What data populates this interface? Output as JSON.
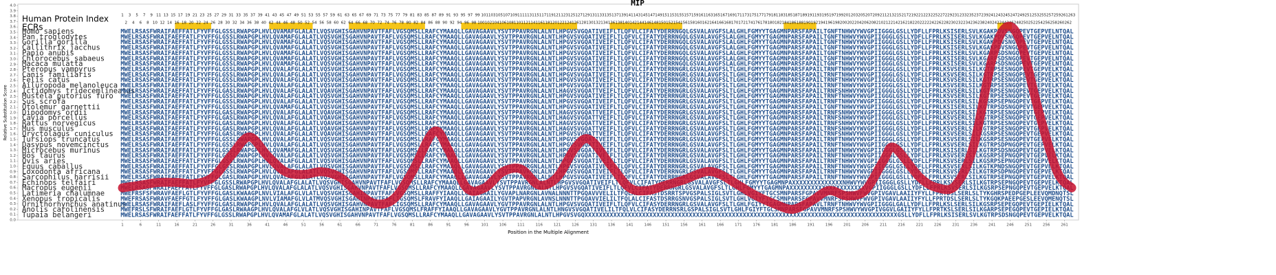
{
  "chart_data": {
    "type": "line",
    "title": "MIP",
    "xlabel": "Position in the Multiple Alignment",
    "ylabel": "Relative Substitution Score",
    "color": "#c8102e",
    "x": [
      1,
      6,
      11,
      16,
      21,
      26,
      31,
      36,
      41,
      46,
      51,
      56,
      61,
      66,
      71,
      76,
      81,
      87,
      91,
      96,
      101,
      106,
      111,
      116,
      121,
      126,
      130,
      136,
      141,
      146,
      151,
      156,
      162,
      166,
      171,
      176,
      181,
      186,
      191,
      196,
      201,
      206,
      211,
      214,
      221,
      226,
      231,
      236,
      241,
      245,
      249,
      254,
      259,
      263
    ],
    "values": [
      0.6,
      0.65,
      0.7,
      0.7,
      0.68,
      0.8,
      1.2,
      1.55,
      1.2,
      0.9,
      0.85,
      0.9,
      0.8,
      0.5,
      0.3,
      0.4,
      0.9,
      1.65,
      1.3,
      0.6,
      0.6,
      0.9,
      0.95,
      0.65,
      0.8,
      1.35,
      1.5,
      1.0,
      0.6,
      0.55,
      0.65,
      0.75,
      0.9,
      0.85,
      0.65,
      0.45,
      0.3,
      0.2,
      0.35,
      0.55,
      0.45,
      0.55,
      1.1,
      1.35,
      0.8,
      0.6,
      0.65,
      1.4,
      3.0,
      3.6,
      3.3,
      2.0,
      0.9,
      0.6
    ],
    "xlim": [
      1,
      263
    ],
    "ylim": [
      0,
      4
    ],
    "xticks": [
      1,
      6,
      11,
      16,
      21,
      26,
      31,
      36,
      41,
      46,
      51,
      56,
      61,
      66,
      71,
      76,
      81,
      86,
      91,
      96,
      101,
      106,
      111,
      116,
      121,
      126,
      131,
      136,
      141,
      146,
      151,
      156,
      161,
      166,
      171,
      176,
      181,
      186,
      191,
      196,
      201,
      206,
      211,
      216,
      221,
      226,
      231,
      236,
      241,
      246,
      251,
      256,
      261
    ],
    "yticks": [
      {
        "value": 0,
        "label": "0.0"
      },
      0.1,
      0.2,
      0.3,
      0.4,
      0.5,
      0.6,
      0.7,
      0.8,
      0.9,
      {
        "value": 1,
        "label": "1.0"
      },
      1.1,
      1.2,
      1.3,
      1.4,
      1.5,
      1.6,
      1.7,
      1.8,
      1.9,
      {
        "value": 2,
        "label": "2.0"
      },
      2.1,
      2.2,
      2.3,
      2.4,
      2.5,
      2.6,
      2.7,
      2.8,
      2.9,
      {
        "value": 3,
        "label": "3.0"
      },
      3.1,
      3.2,
      3.3,
      3.4,
      3.5,
      3.6,
      3.7,
      3.8,
      3.9,
      {
        "value": 4,
        "label": "4.0"
      }
    ]
  },
  "alignment": {
    "index_title": "Human Protein Index",
    "ecr_title": "ECRs",
    "index_row": [
      1,
      3,
      5,
      7,
      9,
      11,
      13,
      15,
      17,
      19,
      21,
      23,
      25,
      27,
      29,
      31,
      33,
      35,
      37,
      39,
      41,
      43,
      45,
      47,
      49,
      51,
      53,
      55,
      57,
      59,
      61,
      63,
      65,
      67,
      69,
      71,
      73,
      75,
      77,
      79,
      81,
      83,
      85,
      87,
      89,
      91,
      93,
      95,
      97,
      99,
      101,
      103,
      105,
      107,
      109,
      111,
      113,
      115,
      117,
      119,
      121,
      123,
      125,
      127,
      129,
      131,
      133,
      135,
      137,
      139,
      141,
      143,
      145,
      147,
      149,
      151,
      153,
      155,
      157,
      159,
      161,
      163,
      165,
      167,
      169,
      171,
      173,
      175,
      177,
      179,
      181,
      183,
      185,
      187,
      189,
      191,
      193,
      195,
      197,
      199,
      201,
      203,
      205,
      207,
      209,
      211,
      213,
      215,
      217,
      219,
      221,
      223,
      225,
      227,
      229,
      231,
      233,
      235,
      237,
      239,
      241,
      243,
      245,
      247,
      249,
      251,
      253,
      255,
      257,
      259,
      261,
      263
    ],
    "position_row": [
      2,
      4,
      6,
      8,
      10,
      12,
      14,
      16,
      18,
      20,
      22,
      24,
      26,
      28,
      30,
      32,
      34,
      36,
      38,
      40,
      42,
      44,
      46,
      48,
      50,
      52,
      54,
      56,
      58,
      60,
      62,
      64,
      66,
      68,
      70,
      72,
      74,
      76,
      78,
      80,
      82,
      84,
      86,
      88,
      90,
      92,
      94,
      96,
      98,
      100,
      102,
      104,
      106,
      108,
      110,
      112,
      114,
      116,
      118,
      120,
      122,
      124,
      126,
      128,
      130,
      132,
      134,
      136,
      138,
      140,
      142,
      144,
      146,
      148,
      150,
      152,
      154,
      156,
      158,
      160,
      162,
      164,
      166,
      168,
      170,
      172,
      174,
      176,
      178,
      180,
      182,
      184,
      186,
      188,
      190,
      192,
      194,
      196,
      198,
      200,
      202,
      204,
      206,
      208,
      210,
      212,
      214,
      216,
      218,
      220,
      222,
      224,
      226,
      228,
      230,
      232,
      234,
      236,
      238,
      240,
      242,
      244,
      246,
      248,
      250,
      252,
      254,
      256,
      258,
      260,
      262
    ],
    "ecrs": [
      [
        16,
        25
      ],
      [
        42,
        53
      ],
      [
        64,
        84
      ],
      [
        95,
        126
      ],
      [
        136,
        155
      ],
      [
        184,
        192
      ],
      [
        243,
        246
      ]
    ],
    "rows": [
      {
        "species": "Homo sapiens",
        "sequence": "MWELRSASFWRAIFAEFFATLFYVFFGLGSSLRWAPGPLHVLQVAMAFGLALATLVQSVGHISGAHVNPAVTFAFLVGSQMSLLRAFCYMAAQLLGAVAGAAVLYSVTPPAVRGNLALNTLHPGVSVGQATIVEIFLTLQFVLCIFATYDERRNGQLGSVALAVGFSLALGHLFGMYYTGAGMNPARSFAPAILTGNFTNHWVYWVGPIIGGGLGSLLYDFLLFPRLKSISERLSVLKGAKPDVSNGQPEVTGEPVELNTQAL"
      },
      {
        "species": "Pan troglodytes",
        "sequence": "MWELRSASFWRAIFAEFFATLFYVFFGLGSSLRWAPGPLHVLQVAMAFGLALATLVQSVGHISGAHVNPAVTFAFLVGSQMSLLRAFCYMAAQLLGAVAGAAVLYSVTPPAVRGNLALNTLHPGVSVGQATIVEIFLTLQFVLCIFATYDERRNGQLGSVALAVGFSLALGHLFGMYYTGAGMNPARSFAPAILTGNFTNHWVYWVGPIIGGGLGSLLYDFLLFPRLKSISERLSVLKGAKPDVSNGQPEVTGEPVELNTQAL"
      },
      {
        "species": "Gorilla gorilla",
        "sequence": "MWELRSASFWRAIFAEFFATLFYVFFGLGSSLRWAPGPLHVLQVAMAFGLALATLVQSVGHISGAHVNPAVTFAFLVGSQMSLLRAFCYMAAQLLGAVAGAAVLYSVTPPAVRGNLALNTLHPGVSVGQATIVEIFLTLQFVLCIFATYDERRNGQLGSVALAVGFSLALGHLFGMYYTGAGMNPARSFAPAILTGNFTNHWVYWVGPIIGGGLGSLLYDFLLFPRLKSISERLSVLKGAKPDVSNGQPEVTGEPVELNTQAL"
      },
      {
        "species": "Callithrix jacchus",
        "sequence": "MWELRSASFWRAIFAEFFATLFYVFFGLGSSLRWAPGPLHVLQVAMAFGLALATLVQSVGHISGAHVNPAVTFAFLVGSQMSLLRAFCYMAAQLLGAVAGAAVLYSVTPPAVRGNLALNTLHPGVSVGQATIVEIFLTLQFVLCIFATYDERRNGQLGSVALAVGFSLALGHLFGMYYTGAGMNPARSFAPAILTGNFTNHWVYWVGPIIGGGLGSLLYDFLLFPRLKSISERLSVLKGAKPDVSNGQPEVTGEPVELNTQAL"
      },
      {
        "species": "Papio anubis",
        "sequence": "MWELRSASFWRAIFAEFFATLFYVFFGLGSSLRWAPGPLHVLQVAMAFGLALATLVQSVGHISGAHVNPAVTFAFLVGSQMSLLRAFCYMAAQLLGAVAGAAVLYSVTPPAVRGNLALNTLHPGVSVGQATIVEIFLTLQFVLCIFATYDERRNGQLGSVALAVGFSLALGHLFGMYYTGAGMNPARSFAPAILTGNFTNHWVYWVGPIIGGGLGSLLYDFLLFPRLKSISERLSVLKGARPSDSNGQPEVTGEPVELNTQAL"
      },
      {
        "species": "Chlorocebus sabaeus",
        "sequence": "MWELRSASFWRAIFAEFFATLFYVFFGLGSSLRWAPGPLHVLQVAMAFGLALATLVQSVGHISGAHVNPAVTFAFLVGSQMSLLRAFCYMAAQLLGAVAGAAVLYSVTPPAVRGNLALNTLHPGVSVGQATIVEIFLTLQFVLCIFATYDERRNGQLGSVALAVGFSLALGHLFGMYYTGAGMNPARSFAPAILTGNFTNHWVYWVGPIIGGGLGSLLYDFLLFPRLKSISERLSVLKGARPSDSNGQPEVTGEPVELNTQAL"
      },
      {
        "species": "Macaca mulatta",
        "sequence": "MWELRSASFWRAIFAEFFATLFYVFFGLGSSLRWAPGPLHVLQVAMAFGLALATLVQSVGHISGAHVNPAVTFAFLVGSQMSLLRAFCYMAAQLLGAVAGAAVLYSVTPPAVRGNLALNTLHPGVSVGQATIVEIFLTLQFVLCIFATYDERRNGQLGSVALAVGFSLALGHLFGMYYTGAGMNPARSFAPAILTGNFTNHWVYWVGPIIGGGLGSLLYDFLLFPRLKSISERLSVLKGARPSDSNGQPEVTGEPVELNTQAL"
      },
      {
        "species": "Pteropus vampyrus",
        "sequence": "MWELRSASFWRAIFAEFFATLFYVFFGLGSSLRWAPGPLHVLQVALAFGLALATLVQSVGHISGAHVNPAVTFAFLVGSQMSLLRAFCYMAAQLLGAVAGAAVLYSVTPPAVRGNLALNTLHPGVSVGQATIVEIFLTLQFVLCIFATYDERRNGRLGSVALAVGFSLTLGHLFGMYYTGAGMNPARSFAPAILTRNFTNHWVYWVGPIIGGGLGSLLYDFLLFPRLKSVSERLSILKGTRPSESNGQPEVTGEPVELKTQAL"
      },
      {
        "species": "Canis familiaris",
        "sequence": "MWELRSASFWRAIFAEFFATLFYVFFGLGSSLRWAPGPLHVLQVALAFGLALATLVQSVGHISGAHVNPAVTFAFLVGSQMSLLRAFCYMAAQLLGAVAGAAVLYSVTPPAVRGNLALNTLHPGVSVGQATIVEIFLTLQFVLCIFATYDERRNGRLGSVALAVGFSLTLGHLFGMYYTGAGMNPARSFAPAILTRNFTNHWVYWVGPIIGGGLGSLLYDFLLFPRLKSVSERLSILKGTRPSESNGQPEVTGEPVELKTQAL"
      },
      {
        "species": "Felis catus",
        "sequence": "MWELRSASFWRAIFAEFFATLFYVFFGLGSSLRWAPGPLHVLQVALAFGLALATLVQSVGHISGAHVNPAVTFAFLVGSQMSLLRAFCYMAAQLLGAVAGAAVLYSVTPPAVRGNLALNTLHPGVSVGQATIVEIFLTLQFVLCIFATYDERRNGRLGSVALAVGFSLTLGHLFGMYYTGAGMNPARSFAPAILTRNFTNHWVYWVGPIIGGGLGSLLYDFLLFPRLKSVSERLSILKGTRPSESNGQPEVTGEPVELKTQAL"
      },
      {
        "species": "Ailuropoda melanoleuca",
        "sequence": "MWELRSASFWRAIFAEFFATLFYVFFGLGSSLRWAPGPLHVLQVALAFGLALATLVQSVGHISGAHVNPAVTFAFLVGSQMSLLRAFCYMAAQLLGAVAGAAVLYSVTPPAVRGNLALNTLHPGVSVGQATIVEIFLTLQFVLCIFATYDERRNGRLGSVALAVGFSLTLGHLFGMYYTGAGMNPARSFAPAILTRNFTNHWVYWVGPIIGGGLGSLLYDFLLFPRLKSVSERLSILKGTRPSESNGQPEVTGEPVELKTQAL"
      },
      {
        "species": "Ictidomys tridecemlineatus",
        "sequence": "MWELRSASFWRAIFAEFFATLFYVFFGLGASLRWAPGPLHVLQVALAFGLALATLVQAVGHISGAHVNPAVTFAFLVGSQMSLLRAFCYMAAQLLGAVAGAAVLYSVTPPAVRGNLALNTLHAGVSVGQATTVEIFLTLQFVLCIFATYDERRNGRLGSVALAVGFSLTLGHLFGMYYTGAGMNPARSFAPAILTRNFSNHWVYWVGPIIGGGLGSLLYDFLLFPRLKSVSERLSILKGTRPSESNGQPEVTGEPVELKTQAL"
      },
      {
        "species": "Mustela putorius furo",
        "sequence": "MWELRSASFWRAIFAEFFATLFYVFFGLGSSLRWAPGPLHVLQVALAFGLALATLVQSVGHISGAHVNPAVTFAFLVGSQMSLLRAFCYMAAQLLGAVAGAAVLYSVTPPAVRGNLALNTLHPGVSVGQATIVEIFLTLQFVLCIFATYDERRNGRLGSVALAVGFSLTLGHLFGMYYTGAGMNPARSFAPAILTRNFTNHWVYWVGPIIGGGLGSLLYDFLLFPRLKSVSERLSILKGTRPSESNGQPEVTGEPVELKTQAL"
      },
      {
        "species": "Sus scrofa",
        "sequence": "MWELRSASFWRAIFAEFFATLFYVFFGLGSSLRWAPGPLHVLQVALAFGLALATLVQSVGHISGAHVNPAVTFAFLVGSQMSLLRAFCYMAAQLLGAVAGAAVLYSVTPPAVRGNLALNTLHPGVSVGQATIVEIFLTLQFVLCIFATYDERRNGRLGSVALAVGFSLTLGHLFGMYYTGAGMNPARSFAPAILTRNFTNHWVYWVGPIIGGGLGSLLYDFLLFPRLKSVSERLSILKGSRPSEPNGQPEVTGEPVELKTQAL"
      },
      {
        "species": "Otolemur garnettii",
        "sequence": "MWELRSASFWRAIFAEFFATLFYVFFGLGSSLRWAPGPLHVLQVAMAFGLALATLVQSVGHISGAHVNPAVTFAFLVGSQMSLLRAFCYMAAQLLGAVAGAAVLYSVTPPAVRGNLALNTLHPGVSVGQATIVEIFLTLQFVLCIFATYDERRNGRLGSVALAVGFSLTLGHLFGMYYTGAGMNPARSFAPAILTGNFTNHWVYWVGPIIGGGLGSLLYDFLLFPRLKSISERLSILKGTRPSDSNGQPEVTGEPVELKTQAL"
      },
      {
        "species": "Dipodomys ordii",
        "sequence": "MWELRSASFWRAIFAEFFATLFYVFFGLGASLRWAPGPLHVLQVALAFGLALATLVQAVGHISGAHVNPAVTFAFLVGSQMSLLRAFCYMAAQLLGAVAGAAVLYSVTPPAVRGNLALNTLHAGVSVGQATTVEIFLTLQFVLCIFATYDERRNGRLGSVALAVGFSLTLGHLFGMYYTGAGMNPARSFAPAILTRNFSNHWVYWVGPIIGGGLGSLLYDFLLFPRLKSVSERLSILKGTRPSESNGQPEVTGEPVELKTQAL"
      },
      {
        "species": "Cavia porcellus",
        "sequence": "MWELRSASFWRAIFAEFFATLFYVFFGLGASLRWAPGPLHVLQVALAFGLALATLVQAVGHISGAHVNPAVTFAFLVGSQMSLLRAFCYMAAQLLGAVAGAAVLYSVTPPAVRGNLALNTLHAGVSVGQATTVEIFLTLQFVLCIFATYDERRNGRLGSVALAVGFSLTLGHLFGMYYTGAGMNPARSFAPAILTRNFSNHWVYWVGPIIGGGLGSLLYDFLLFPRLKSVSERLSILKGTRPSESNGQPEVTGEPVELKTQAL"
      },
      {
        "species": "Rattus norvegicus",
        "sequence": "MWELRSASFWRAIFAEFFATLFYVFFGLGASLRWAPGPLHVLQVALAFGLALATLVQAVGHISGAHVNPAVTFAFLVGSQMSLLRAFCYMAAQLLGAVAGAAVLYSVTPPAVRGNLALNTLHAGVSVGQATTVEIFLTLQFVLCIFATYDERRNGRLGSVALAVGFSLTLGHLFGMYYTGAGMNPARSFAPAILTRNFSNHWVYWVGPIIGGGLGSLLYDFLLFPRLKSVSERLSILKGTRPSESNGQPEVTGEPVELKTQAL"
      },
      {
        "species": "Mus musculus",
        "sequence": "MWELRSASFWRAIFAEFFATLFYVFFGLGASLRWAPGPLHVLQVALAFGLALATLVQAVGHISGAHVNPAVTFAFLVGSQMSLLRAFCYMAAQLLGAVAGAAVLYSVTPPAVRGNLALNTLHAGVSVGQATTVEIFLTLQFVLCIFATYDERRNGRLGSVALAVGFSLTLGHLFGMYYTGAGMNPARSFAPAILTRNFSNHWVYWVGPIIGGGLGSLLYDFLLFPRLKSVSERLSILKGTRPSESNGQPEVTGEPVELKTQAL"
      },
      {
        "species": "Oryctolagus cuniculus",
        "sequence": "MWELRSASFWRAIFAEFFATLFYVFFGLGASLRWAPGPLHVLQVALAFGLALATLVQAVGHISGAHVNPAVTFAFLVGSQMSLLRAFCYMAAQLLGAVAGAAVLYSVTPPAVRGNLALNTLHPGVSVGQATTVEIFLTLQFVLCIFATYDERRNGRLGSVALAVGFSLTLGHLFGMYYTGAGMNPARSFAPAILTRNFSNHWVYWVGPIIGGGLGSLLYDFLLFPRLKSVSERLSILKGSRPSESNGQPEVTGEPVELKTQAL"
      },
      {
        "species": "Tursiops truncatus",
        "sequence": "MWELRSASFWRAIFAEFFATLFYVFFGLGSSLRWAPGPLHVLQVALAFGLALATLVQSVGHISGAHVNPAVTFAFLVGSQMSLLRAFCYMAAQLLGAVAGAAVLYSVTPPAVRGNLALNTLHPGVSVGQATIVEIFLTLQFVLCIFATYDERRNGRLGSVALAVGFSLTLGHLFGMYYTGAGMNPARSFAPAILTRNFTNHWVYWVGPIIGGGLGSLLYDFLLFPRLKSVSERLSILKGSRPSESNGQPEVTGEPVELKTQAL"
      },
      {
        "species": "Dasypus novemcinctus",
        "sequence": "MWELRSASFWRAIFAEFFATLFYVFFGLGSSLRWAPGPLHVLQVALAFGLALATLVQSVGHISGAHVNPAVTFAFLVGSQMSLLRAFCYMAAQLLGAVAGAAVLYSVTPPAVRGNLALNTLHPGVSVGQATIVEIFLTLQFVLCIFATYDERRNGRLGSVALAVGFSLTLGHLFGMYYTGAGMNPARSFAPAILTRNFTNHWVYWVGPIIGGGLGSLLYDFLLFPRLKSVSERLSILKGTRPSDPNGQPEVTGEPVELKTQAL"
      },
      {
        "species": "Microcebus murinus",
        "sequence": "MWELRSASFWRAIFAEFFATLFYVFFGLGSSLRWAPGPLHVLQVAMAFGLALATLVQSVGHISGAHVNPAVTFAFLVGSQMSLLRAFCYMAAQLLGAVAGAAVLYSVTPPAVRGNLALNTLHPGVSVGQATIVEIFLTLQFVLCIFATYDERRNGRLGSVALAVGFSLTLGHLFGMYYTGAGMNPARSFAPAILTGNFTNHWVYWVGPIIGGGLGSLLYDFLLFPRLKSISERLSILKGTRPSDSNGQPEVTGEPVELKTQAL"
      },
      {
        "species": "Bos taurus",
        "sequence": "MWELRSASFWRAIFAEFFATLFYVFFGLGSSLRWAPGPLHVLQVALAFGLALATLVQSVGHISGAHVNPAVTFAFLVGSQMSLLRAFCYMAAQLLGAVAGAAVLYSVTPPAVRGNLALNTLHPGVSVGQATIVEIFLTLQFVLCIFATYDERRNGRLGSVALAVGFSLTLGHLFGMYYTGAGMNPARSFAPAILTRNFTNHWVYWVGPIIGGGLGSLLYDFLLFPRLKSVSERLSILKGSRPSEPNGQPEVTGEPVELKTQAL"
      },
      {
        "species": "Ovis aries",
        "sequence": "MWELRSASFWRAIFAEFFATLFYVFFGLGSSLRWAPGPLHVLQVALAFGLALATLVQSVGHISGAHVNPAVTFAFLVGSQMSLLRAFCYMAAQLLGAVAGAAVLYSVTPPAVRGNLALNTLHPGVSVGQATIVEIFLTLQFVLCIFATYDERRNGRLGSVALAVGFSLTLGHLFGMYYTGAGMNPARSFAPAILTRNFTNHWVYWVGPIIGGGLGSLLYDFLLFPRLKSVSERLSILKGSRPSEPNGQPEVTGEPVELKTQAL"
      },
      {
        "species": "Equus caballus",
        "sequence": "MWELRSASFWRAIFAEFFATLFYVFFGLGSSLRWAPGPLHVLQVALAFGLALATLVQSVGHISGAHVNPAVTFAFLVGSQMSLLRAFCYMAAQLLGAVAGAAVLYSVTPPAVRGNLALNTLHPGVSVGQATIVEIFLTLQFVLCIFATYDERRNGRLGSVALAVGFSLTLGHLFGMYYTGAGMNPARSFAPAILTRNFTNHWVYWVGPIIGGGLGSLLYDFLLFPRLKSVSERLSILKGTKPNDSNGQPEVTGEPVELKTQAL"
      },
      {
        "species": "Loxodonta africana",
        "sequence": "MWELRSASFWRAIFAEFFATLFYVFFGLGSSLRWAPGPLHVLQVALAFGLALATLVQSVGHISGAHVNPAVTFAFLVGSQMSLLRAFCYMAAQLLGAVAGAAVLYSVTPPAVRGNLALNTLHPGVSVGQATIVEIFLTLQFVLCIFATYDERRNGRLGSVALAVGFSLTLGHLFGMYYTGAGMNPARSFAPAILTRNFTNHWVYWVGPIIGGGLGSLLYDFLLFPRLKSVSERLSILKGTRPSDPNGQPEVTGEPVELKTQAL"
      },
      {
        "species": "Sarcophilus harrisii",
        "sequence": "MWELRSASFWRAIFAEFFATLFYVFFGLGASLRWAPGPLHVLQVALAFGLALATLVQSVGHISGAHVNPAVTFAFLVGSQMSLLRAFCYMAAQLLGAVAGAAVLYSVTPPAVRGNLALNTLHPGVSVGQATIVEIFLTLQFVLCIFATYDERRNGRLGSVALAVGFSLTLGHLFGMYYTGAGMNPARSFAPAILTRNFTNHWVYWVGPIIGGGLGSLLYDFLLFPRLKSVSERLSILKGTRPSEPNGQPEVTGEPVELKTQAL"
      },
      {
        "species": "Echinops telfairi",
        "sequence": "MWELRSASFWRAIFAEFFATLFYVFFGLGSSLRWAPGPLHVLQVALAFGLALATLVQSVGHISGAHVNPAVTFAFLVGSQMSLLRAFCYMAAQLLGAVAGAAVLYSVTPPAVRGNLALNTLHPGVSVGQATIVEIFLTLQFVLCIFATYDERRNGRLGSVALAVGFSLTLGHLFGMYYTGAGMNPAXXXXXXXXXXXXXXNHWVYWVGPIIGGGLGSLLYDFLLFPRLKSVSERLSILKGTRPSEPNGQPEVTGEPVELKTQAL"
      },
      {
        "species": "Macropus eugenii",
        "sequence": "MWELRSASFWRAIFAEFFATLFYVFFGLGASLRWAPGPLHVLQVALAFGLALATLVQSVGHISGAHVNPAVTFAFLVGSQMSLLRAFCYMAAQLLGAVAGAAVLYSVTPPAVRGNLALNTLHPGVSVGQATIVEIFLTLQFVLCIFATYDERRNGRLGSVALAVGFSLTLGHLFGMYYTGAGMNPAXXXXXXXXXXXXXXXXXXXXXVGPIIGGGLGSLLYDFLLFPRLKSVSERLSILKGSRPSEPNGQPEVTGEPVELKTQAL"
      },
      {
        "species": "Latimeria chalumnae",
        "sequence": "MWEFRSFSFWRAVFAEFLGTLFYVFFGLGASLKWAAGPLNVLVIALAFGLVLATLVQSVGHISGAHINPAVTFAFLVGSQMSLLRAFFYIAAQLLGAIAGAAILYGVAPLNARGNLAVNALNNNTTPGQAVVVELILTFQLALCIFASTDSRRTSPVGSPALSIGLSVTLGHLVGIYFTGCSMNPARSFGPAVVMNRFSPSHWVFWVGPIVGAVLAAIIYFYLLFPRTDSLSERLSLTYKGHRSPEDPGEPLEEVQMDNQTSL"
      },
      {
        "species": "Xenopus tropicalis",
        "sequence": "MWEFRSASFWRAVFAEFFGTLFYVFFGLGASLKWAAGPLNVLVIAMAFGLVLATMVQSVGHISGAHINPAVTFAFLIGSQMSLFRAVFYIAAQLLGAIAGAAILYGVTPAPVRGNLAVNSLNNNTTPGQAVVIELILTFQLALCIFASTDSRRGSNVGSPALSIGLSVTLGHLVGIYFTGCSMNPARSFGPAVVMNRFSPSHWVFWVGPIVGAVLAAIIYFYLLFPRTDSLSERLSLTYKGQKPAEEPGESLEEVQMENQTSL"
      },
      {
        "species": "Ornithorhynchus anatinus",
        "sequence": "MWELRSASFWRAIFAEFLASLFYVFFGLGASLRWAPGPLHVLQVALAFGLALATLVQSVGHISGAHVNPAVTFAFLIGSQMSLLRAFCYMAAQLLGAVAGAAVLYGVTPPAVRGNLALNTLHPGVSVGQATIVEIFLTLQFVLCIFASYDERRNGRLGSVALAVGFSLTLGHLFGIYYTGAGMNPARSFAPAVLTRNFTNHWVYWVGPIIGGGLGALLYDFLLFPRLKSLSERLSILKGSRPSEPEGQPEVTGEPIELKTQAL"
      },
      {
        "species": "Anolis carolinensis",
        "sequence": "MWEFRSLSFWRAIFAEFLGTLFYVFFGLGASLRWAAGPLHVLQVALAFGLVLATLVQSVGHISGAHINPAVTFAFLVGSQMSLFRAFFYIAAQLLGAVAGAAVLYGVTPPAVRGNLALNTLHNGVSVGQATIVELILTFQLVLCIFASYDERRNSRLGSPALSIGLSVTLGHLFGIYFTGCSMNPARSFGPAVVMNRFSPSHWVYWVGPIVGGVLGAIIYFYLLFPRTKSLSERLSILKGARPSEPEGQPEVTGEPIELKTQAL"
      },
      {
        "species": "Tupaia belangeri",
        "sequence": "MWELRSASFWRAIFAEFFATLFYVFFGLGSSLRWAPGPLHVLQVAMAFGLALATLVQSVGHISGAHVNPAVTFAFLVGSQMSLLRAFCYMAAQLLGAVAGAAVLYSVTPPAVRGNLALNTLHPGVSVGQXXXXXXXXXXXXXXXXXXXXXXXXXXXXXXXXXXXXXXXXXXXXXXXXXXXXXXXXXXXXXXXXXXXXXXXXXXXXXXXXXXXXXXXGSLLYDFLLFPRLKSISERLSVLKGTRPSDSNGQPEVTGEPVELKTQAL"
      }
    ]
  }
}
